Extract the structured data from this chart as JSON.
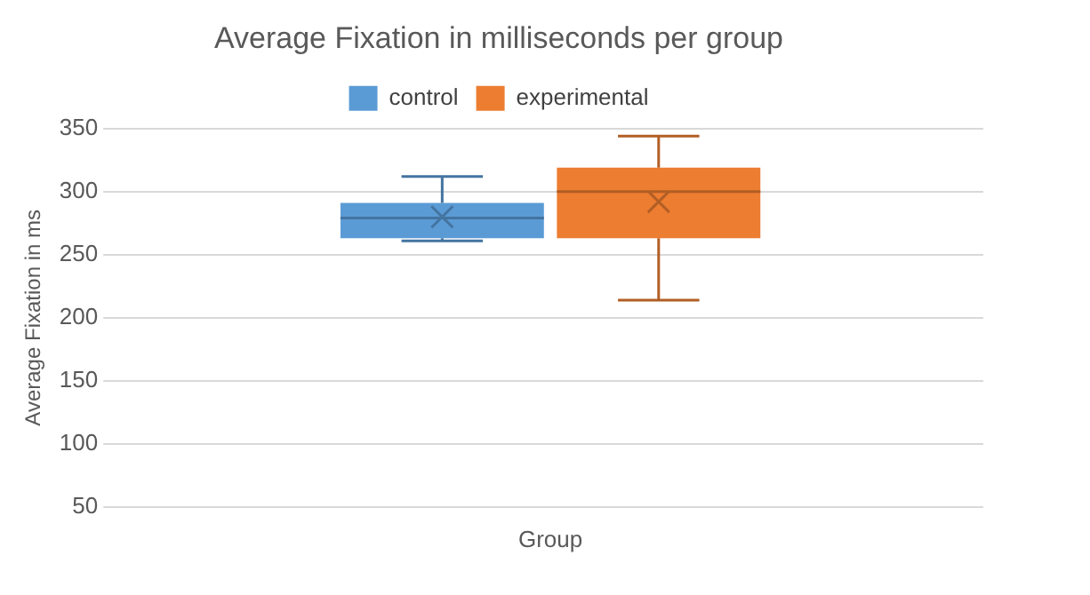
{
  "chart_data": {
    "type": "box",
    "title": "Average Fixation in milliseconds per group",
    "ylabel": "Average Fixation in ms",
    "categories": [
      "Group"
    ],
    "series": [
      {
        "name": "control",
        "color": "#5b9bd5",
        "boxes": [
          {
            "low": 261,
            "q1": 263,
            "median": 279,
            "q3": 291,
            "high": 312,
            "mean": 280
          }
        ]
      },
      {
        "name": "experimental",
        "color": "#ed7d31",
        "boxes": [
          {
            "low": 214,
            "q1": 263,
            "median": 300,
            "q3": 319,
            "high": 344,
            "mean": 292
          }
        ]
      }
    ],
    "ylim": [
      50,
      350
    ],
    "yticks": [
      50,
      100,
      150,
      200,
      250,
      300,
      350
    ],
    "grid": "y",
    "legend": "top",
    "marker": "cross"
  }
}
